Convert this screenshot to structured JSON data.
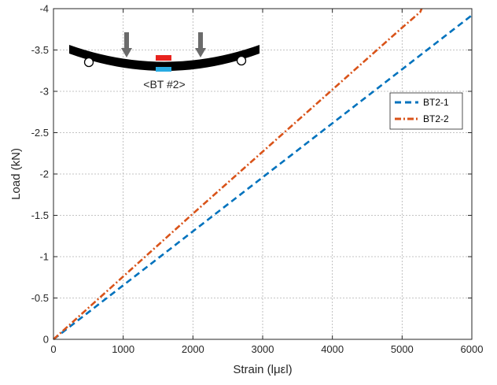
{
  "chart_data": {
    "type": "line",
    "xlabel": "Strain (lμεl)",
    "ylabel": "Load (kN)",
    "xlim": [
      0,
      6000
    ],
    "ylim": [
      0,
      -4
    ],
    "y_reversed": true,
    "grid": true,
    "legend_placement": "right",
    "x_ticks": [
      "0",
      "1000",
      "2000",
      "3000",
      "4000",
      "5000",
      "6000"
    ],
    "y_ticks": [
      "0",
      "-0.5",
      "-1",
      "-1.5",
      "-2",
      "-2.5",
      "-3",
      "-3.5",
      "-4"
    ],
    "x_tick_values": [
      0,
      1000,
      2000,
      3000,
      4000,
      5000,
      6000
    ],
    "y_tick_values": [
      0,
      -0.5,
      -1,
      -1.5,
      -2,
      -2.5,
      -3,
      -3.5,
      -4
    ],
    "series": [
      {
        "name": "BT2-1",
        "color": "#0072BD",
        "style": "dashed",
        "x": [
          0,
          1500,
          3000,
          4500,
          6000
        ],
        "y": [
          0,
          -0.98,
          -1.96,
          -2.94,
          -3.92
        ]
      },
      {
        "name": "BT2-2",
        "color": "#D95319",
        "style": "dash-dot",
        "x": [
          0,
          1000,
          2000,
          3000,
          4000,
          5000,
          5260,
          5280
        ],
        "y": [
          0,
          -0.76,
          -1.52,
          -2.27,
          -3.02,
          -3.77,
          -3.96,
          -4.0
        ]
      }
    ],
    "inset": {
      "label": "<BT #2>",
      "beam_color": "#000000",
      "top_gauge_color": "#E8231E",
      "bottom_gauge_color": "#29ABE2",
      "arrow_color": "#6B6B6B"
    }
  }
}
